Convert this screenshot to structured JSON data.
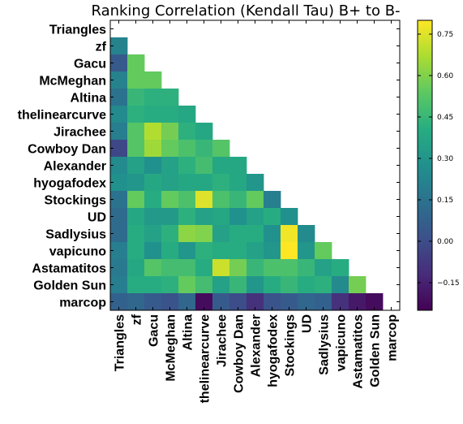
{
  "chart_data": {
    "type": "heatmap",
    "title": "Ranking Correlation (Kendall Tau) B+ to B-",
    "labels": [
      "Triangles",
      "zf",
      "Gacu",
      "McMeghan",
      "Altina",
      "thelinearcurve",
      "Jirachee",
      "Cowboy Dan",
      "Alexander",
      "hyogafodex",
      "Stockings",
      "UD",
      "Sadlysius",
      "vapicuno",
      "Astamatitos",
      "Golden Sun",
      "marcop"
    ],
    "matrix": [
      [
        null,
        null,
        null,
        null,
        null,
        null,
        null,
        null,
        null,
        null,
        null,
        null,
        null,
        null,
        null,
        null,
        null
      ],
      [
        0.22,
        null,
        null,
        null,
        null,
        null,
        null,
        null,
        null,
        null,
        null,
        null,
        null,
        null,
        null,
        null,
        null
      ],
      [
        0.05,
        0.55,
        null,
        null,
        null,
        null,
        null,
        null,
        null,
        null,
        null,
        null,
        null,
        null,
        null,
        null,
        null
      ],
      [
        0.22,
        0.55,
        0.55,
        null,
        null,
        null,
        null,
        null,
        null,
        null,
        null,
        null,
        null,
        null,
        null,
        null,
        null
      ],
      [
        0.15,
        0.45,
        0.42,
        0.42,
        null,
        null,
        null,
        null,
        null,
        null,
        null,
        null,
        null,
        null,
        null,
        null,
        null
      ],
      [
        0.25,
        0.42,
        0.4,
        0.4,
        0.38,
        null,
        null,
        null,
        null,
        null,
        null,
        null,
        null,
        null,
        null,
        null,
        null
      ],
      [
        0.2,
        0.52,
        0.68,
        0.58,
        0.42,
        0.38,
        null,
        null,
        null,
        null,
        null,
        null,
        null,
        null,
        null,
        null,
        null
      ],
      [
        -0.02,
        0.52,
        0.65,
        0.55,
        0.5,
        0.45,
        0.52,
        null,
        null,
        null,
        null,
        null,
        null,
        null,
        null,
        null,
        null
      ],
      [
        0.25,
        0.35,
        0.28,
        0.35,
        0.42,
        0.48,
        0.38,
        0.38,
        null,
        null,
        null,
        null,
        null,
        null,
        null,
        null,
        null
      ],
      [
        0.28,
        0.3,
        0.38,
        0.35,
        0.38,
        0.38,
        0.42,
        0.38,
        0.3,
        null,
        null,
        null,
        null,
        null,
        null,
        null,
        null
      ],
      [
        0.15,
        0.55,
        0.4,
        0.55,
        0.5,
        0.75,
        0.5,
        0.45,
        0.55,
        0.2,
        null,
        null,
        null,
        null,
        null,
        null,
        null
      ],
      [
        0.12,
        0.38,
        0.32,
        0.32,
        0.42,
        0.35,
        0.38,
        0.28,
        0.35,
        0.4,
        0.28,
        null,
        null,
        null,
        null,
        null,
        null
      ],
      [
        0.12,
        0.4,
        0.35,
        0.42,
        0.62,
        0.6,
        0.35,
        0.4,
        0.4,
        0.28,
        0.78,
        0.25,
        null,
        null,
        null,
        null,
        null
      ],
      [
        0.2,
        0.4,
        0.28,
        0.4,
        0.3,
        0.42,
        0.4,
        0.4,
        0.35,
        0.3,
        0.8,
        0.3,
        0.55,
        null,
        null,
        null,
        null
      ],
      [
        0.18,
        0.38,
        0.52,
        0.48,
        0.48,
        0.4,
        0.72,
        0.58,
        0.45,
        0.5,
        0.5,
        0.45,
        0.35,
        0.4,
        null,
        null,
        null
      ],
      [
        0.2,
        0.4,
        0.4,
        0.42,
        0.55,
        0.48,
        0.35,
        0.45,
        0.3,
        0.4,
        0.45,
        0.4,
        0.42,
        0.25,
        0.58,
        null,
        null
      ],
      [
        0.08,
        0.1,
        0.05,
        0.02,
        0.1,
        -0.22,
        0.05,
        0.0,
        -0.1,
        0.02,
        0.05,
        0.1,
        0.08,
        -0.1,
        -0.18,
        -0.22,
        null
      ]
    ],
    "colorbar": {
      "min": -0.25,
      "max": 0.8,
      "ticks": [
        -0.15,
        0.0,
        0.15,
        0.3,
        0.45,
        0.6,
        0.75
      ],
      "tick_labels": [
        "−0.15",
        "0.00",
        "0.15",
        "0.30",
        "0.45",
        "0.60",
        "0.75"
      ],
      "colormap": "viridis"
    },
    "grid": false
  }
}
